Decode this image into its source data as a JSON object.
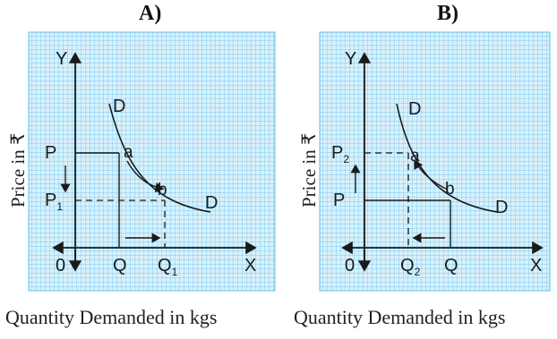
{
  "panels": [
    {
      "title": "A)",
      "y_axis_label": "Price in ₹",
      "x_axis_label": "Quantity Demanded in kgs",
      "labels": {
        "y": "Y",
        "x": "X",
        "origin": "0",
        "curve_top": "D",
        "curve_end": "D",
        "point_a": "a",
        "point_b": "b",
        "price_1": "P",
        "price_2_main": "P",
        "price_2_sub": "1",
        "qty_1": "Q",
        "qty_2_main": "Q",
        "qty_2_sub": "1"
      }
    },
    {
      "title": "B)",
      "y_axis_label": "Price in ₹",
      "x_axis_label": "Quantity Demanded in kgs",
      "labels": {
        "y": "Y",
        "x": "X",
        "origin": "0",
        "curve_top": "D",
        "curve_end": "D",
        "point_a": "a",
        "point_b": "b",
        "price_1_main": "P",
        "price_1_sub": "2",
        "price_2": "P",
        "qty_1_main": "Q",
        "qty_1_sub": "2",
        "qty_2": "Q"
      }
    }
  ],
  "colors": {
    "grid_bg": "#d9f0fb",
    "grid_line": "#5bc0eb",
    "ink": "#1a1a1a"
  }
}
